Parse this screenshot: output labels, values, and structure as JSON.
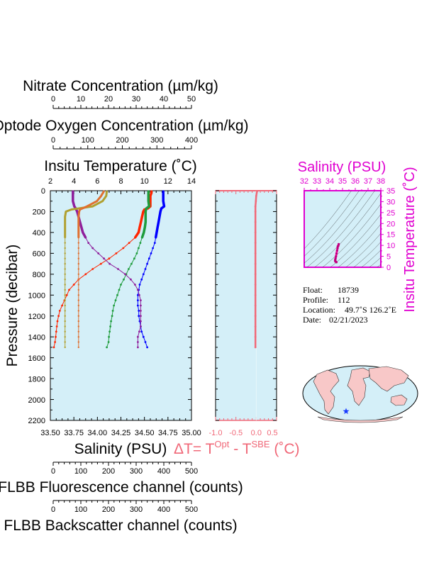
{
  "top_axes": [
    {
      "title": "Nitrate Concentration (µm/kg)",
      "ticks": [
        "0",
        "10",
        "20",
        "30",
        "40",
        "50"
      ]
    },
    {
      "title": "Optode Oxygen Concentration (µm/kg)",
      "ticks": [
        "0",
        "100",
        "200",
        "300",
        "400"
      ]
    },
    {
      "title": "Insitu Temperature (˚C)",
      "ticks": [
        "2",
        "4",
        "6",
        "8",
        "10",
        "12",
        "14"
      ]
    }
  ],
  "bottom_axes": [
    {
      "title": "Salinity (PSU)",
      "ticks": [
        "33.50",
        "33.75",
        "34.00",
        "34.25",
        "34.50",
        "34.75",
        "35.00"
      ]
    },
    {
      "title": "FLBB Fluorescence channel (counts)",
      "ticks": [
        "0",
        "100",
        "200",
        "300",
        "400",
        "500"
      ]
    },
    {
      "title": "FLBB Backscatter channel (counts)",
      "ticks": [
        "0",
        "100",
        "200",
        "300",
        "400",
        "500"
      ]
    }
  ],
  "main_y": {
    "title": "Pressure (decibar)",
    "ticks": [
      "0",
      "200",
      "400",
      "600",
      "800",
      "1000",
      "1200",
      "1400",
      "1600",
      "1800",
      "2000",
      "2200"
    ]
  },
  "dt_axis": {
    "title_main": "ΔT= T",
    "title_sup1": "Opt",
    "title_mid": " - T",
    "title_sup2": "SBE",
    "title_end": " (˚C)",
    "ticks": [
      "-1.0",
      "-0.5",
      "0.0",
      "0.5"
    ]
  },
  "ts_panel": {
    "title_top": "Salinity (PSU)",
    "title_right": "Insitu Temperature (˚C)",
    "x_ticks": [
      "32",
      "33",
      "34",
      "35",
      "36",
      "37",
      "38"
    ],
    "y_ticks": [
      "35",
      "30",
      "25",
      "20",
      "15",
      "10",
      "5",
      "0"
    ]
  },
  "info": {
    "float_label": "Float:",
    "float_value": "18739",
    "profile_label": "Profile:",
    "profile_value": "112",
    "location_label": "Location:",
    "location_value": "49.7˚S  126.2˚E",
    "date_label": "Date:",
    "date_value": "02/21/2023"
  },
  "colors": {
    "panel_bg": "#d4eff8",
    "temperature": "#ff2400",
    "salinity": "#0000ff",
    "oxygen": "#1e9c3c",
    "nitrate": "#8f1f9c",
    "fluorescence": "#b0a030",
    "backscatter": "#e07030",
    "delta_t": "#f06878",
    "ts_axis": "#e000d0",
    "map_land": "#f8c8c8",
    "map_ocean": "#d4eff8"
  },
  "chart_data": [
    {
      "type": "line",
      "title": "",
      "ylabel": "Pressure (decibar)",
      "ylim": [
        2200,
        0
      ],
      "series": [
        {
          "name": "Insitu Temperature (˚C)",
          "xlim": [
            2,
            14
          ],
          "points": [
            [
              10.6,
              5
            ],
            [
              10.6,
              20
            ],
            [
              10.5,
              50
            ],
            [
              10.5,
              100
            ],
            [
              10.5,
              150
            ],
            [
              10.3,
              170
            ],
            [
              10.0,
              180
            ],
            [
              9.9,
              200
            ],
            [
              9.8,
              250
            ],
            [
              9.7,
              300
            ],
            [
              9.6,
              350
            ],
            [
              9.5,
              400
            ],
            [
              9.2,
              450
            ],
            [
              8.7,
              500
            ],
            [
              8.2,
              550
            ],
            [
              7.6,
              600
            ],
            [
              7.0,
              650
            ],
            [
              6.3,
              700
            ],
            [
              5.6,
              750
            ],
            [
              5.0,
              800
            ],
            [
              4.4,
              850
            ],
            [
              4.0,
              900
            ],
            [
              3.6,
              950
            ],
            [
              3.4,
              1000
            ],
            [
              3.2,
              1050
            ],
            [
              3.0,
              1100
            ],
            [
              2.8,
              1150
            ],
            [
              2.7,
              1200
            ],
            [
              2.6,
              1250
            ],
            [
              2.55,
              1300
            ],
            [
              2.5,
              1350
            ],
            [
              2.45,
              1400
            ],
            [
              2.4,
              1450
            ],
            [
              2.3,
              1500
            ]
          ]
        },
        {
          "name": "Salinity (PSU)",
          "xlim": [
            33.5,
            35.0
          ],
          "points": [
            [
              34.7,
              5
            ],
            [
              34.7,
              50
            ],
            [
              34.7,
              100
            ],
            [
              34.71,
              150
            ],
            [
              34.68,
              170
            ],
            [
              34.67,
              200
            ],
            [
              34.66,
              250
            ],
            [
              34.65,
              300
            ],
            [
              34.64,
              350
            ],
            [
              34.63,
              400
            ],
            [
              34.62,
              450
            ],
            [
              34.61,
              500
            ],
            [
              34.59,
              550
            ],
            [
              34.57,
              600
            ],
            [
              34.55,
              650
            ],
            [
              34.53,
              700
            ],
            [
              34.51,
              750
            ],
            [
              34.49,
              800
            ],
            [
              34.47,
              850
            ],
            [
              34.45,
              900
            ],
            [
              34.44,
              950
            ],
            [
              34.43,
              1000
            ],
            [
              34.43,
              1050
            ],
            [
              34.43,
              1100
            ],
            [
              34.44,
              1150
            ],
            [
              34.44,
              1200
            ],
            [
              34.45,
              1250
            ],
            [
              34.46,
              1300
            ],
            [
              34.47,
              1350
            ],
            [
              34.49,
              1400
            ],
            [
              34.51,
              1450
            ],
            [
              34.53,
              1500
            ]
          ]
        },
        {
          "name": "Optode Oxygen Concentration (µm/kg)",
          "xlim": [
            0,
            400
          ],
          "points": [
            [
              278,
              5
            ],
            [
              278,
              50
            ],
            [
              278,
              100
            ],
            [
              280,
              150
            ],
            [
              272,
              170
            ],
            [
              270,
              200
            ],
            [
              270,
              250
            ],
            [
              270,
              300
            ],
            [
              268,
              350
            ],
            [
              265,
              400
            ],
            [
              260,
              450
            ],
            [
              255,
              500
            ],
            [
              250,
              550
            ],
            [
              245,
              600
            ],
            [
              238,
              650
            ],
            [
              230,
              700
            ],
            [
              222,
              750
            ],
            [
              215,
              800
            ],
            [
              208,
              850
            ],
            [
              200,
              900
            ],
            [
              195,
              950
            ],
            [
              190,
              1000
            ],
            [
              185,
              1050
            ],
            [
              180,
              1100
            ],
            [
              177,
              1150
            ],
            [
              175,
              1200
            ],
            [
              172,
              1250
            ],
            [
              170,
              1300
            ],
            [
              168,
              1350
            ],
            [
              166,
              1400
            ],
            [
              165,
              1450
            ],
            [
              160,
              1500
            ]
          ]
        },
        {
          "name": "Nitrate Concentration (µm/kg)",
          "xlim": [
            0,
            50
          ],
          "points": [
            [
              8,
              5
            ],
            [
              8,
              50
            ],
            [
              8,
              100
            ],
            [
              8.5,
              150
            ],
            [
              9,
              170
            ],
            [
              9.5,
              200
            ],
            [
              10,
              250
            ],
            [
              10.5,
              300
            ],
            [
              11,
              350
            ],
            [
              11.5,
              400
            ],
            [
              12.5,
              450
            ],
            [
              13.5,
              500
            ],
            [
              15,
              550
            ],
            [
              17,
              600
            ],
            [
              19,
              650
            ],
            [
              21,
              700
            ],
            [
              24,
              750
            ],
            [
              26.5,
              800
            ],
            [
              28.5,
              850
            ],
            [
              30,
              900
            ],
            [
              31,
              950
            ],
            [
              31.5,
              1000
            ],
            [
              32,
              1050
            ],
            [
              32,
              1100
            ],
            [
              32,
              1150
            ],
            [
              32,
              1200
            ],
            [
              32,
              1250
            ],
            [
              32,
              1300
            ],
            [
              31.5,
              1350
            ],
            [
              31,
              1400
            ],
            [
              31,
              1450
            ],
            [
              31,
              1500
            ]
          ]
        },
        {
          "name": "FLBB Fluorescence channel (counts)",
          "xlim": [
            0,
            500
          ],
          "points": [
            [
              200,
              5
            ],
            [
              198,
              50
            ],
            [
              185,
              100
            ],
            [
              150,
              150
            ],
            [
              75,
              180
            ],
            [
              55,
              200
            ],
            [
              52,
              250
            ],
            [
              52,
              300
            ],
            [
              52,
              350
            ],
            [
              52,
              400
            ],
            [
              52,
              450
            ],
            [
              52,
              500
            ],
            [
              52,
              550
            ],
            [
              52,
              600
            ],
            [
              52,
              650
            ],
            [
              52,
              700
            ],
            [
              52,
              750
            ],
            [
              52,
              800
            ],
            [
              52,
              850
            ],
            [
              52,
              900
            ],
            [
              52,
              950
            ],
            [
              52,
              1000
            ],
            [
              52,
              1050
            ],
            [
              52,
              1100
            ],
            [
              52,
              1150
            ],
            [
              52,
              1200
            ],
            [
              52,
              1250
            ],
            [
              52,
              1300
            ],
            [
              52,
              1350
            ],
            [
              52,
              1400
            ],
            [
              52,
              1450
            ],
            [
              52,
              1500
            ]
          ]
        },
        {
          "name": "FLBB Backscatter channel (counts)",
          "xlim": [
            0,
            500
          ],
          "points": [
            [
              190,
              5
            ],
            [
              180,
              50
            ],
            [
              165,
              100
            ],
            [
              130,
              150
            ],
            [
              105,
              180
            ],
            [
              102,
              200
            ],
            [
              100,
              250
            ],
            [
              100,
              300
            ],
            [
              100,
              350
            ],
            [
              100,
              400
            ],
            [
              100,
              450
            ],
            [
              100,
              500
            ],
            [
              100,
              550
            ],
            [
              100,
              600
            ],
            [
              100,
              650
            ],
            [
              100,
              700
            ],
            [
              100,
              750
            ],
            [
              100,
              800
            ],
            [
              100,
              850
            ],
            [
              100,
              900
            ],
            [
              100,
              950
            ],
            [
              100,
              1000
            ],
            [
              100,
              1050
            ],
            [
              100,
              1100
            ],
            [
              100,
              1150
            ],
            [
              100,
              1200
            ],
            [
              100,
              1250
            ],
            [
              100,
              1300
            ],
            [
              100,
              1350
            ],
            [
              100,
              1400
            ],
            [
              100,
              1450
            ],
            [
              100,
              1500
            ]
          ]
        }
      ]
    },
    {
      "type": "line",
      "title": "",
      "xlabel": "ΔT= TOpt - TSBE (˚C)",
      "xlim": [
        -1.0,
        0.5
      ],
      "ylim": [
        2200,
        0
      ],
      "series": [
        {
          "name": "ΔT",
          "points": [
            [
              0.02,
              5
            ],
            [
              0.0,
              50
            ],
            [
              -0.01,
              100
            ],
            [
              -0.02,
              150
            ],
            [
              -0.02,
              200
            ],
            [
              -0.02,
              300
            ],
            [
              -0.02,
              400
            ],
            [
              -0.02,
              500
            ],
            [
              -0.02,
              600
            ],
            [
              -0.02,
              700
            ],
            [
              -0.02,
              800
            ],
            [
              -0.02,
              900
            ],
            [
              -0.02,
              1000
            ],
            [
              -0.02,
              1100
            ],
            [
              -0.02,
              1200
            ],
            [
              -0.02,
              1300
            ],
            [
              -0.02,
              1400
            ],
            [
              -0.02,
              1500
            ]
          ]
        }
      ]
    },
    {
      "type": "scatter",
      "title": "",
      "xlabel": "Salinity (PSU)",
      "ylabel": "Insitu Temperature (˚C)",
      "xlim": [
        32,
        38
      ],
      "ylim": [
        0,
        35
      ],
      "series": [
        {
          "name": "T-S",
          "points": [
            [
              34.53,
              2.3
            ],
            [
              34.49,
              2.45
            ],
            [
              34.46,
              2.55
            ],
            [
              34.44,
              2.7
            ],
            [
              34.43,
              3.0
            ],
            [
              34.43,
              3.4
            ],
            [
              34.45,
              4.0
            ],
            [
              34.49,
              5.0
            ],
            [
              34.53,
              6.3
            ],
            [
              34.57,
              7.6
            ],
            [
              34.61,
              8.7
            ],
            [
              34.63,
              9.5
            ],
            [
              34.65,
              9.7
            ],
            [
              34.67,
              9.9
            ],
            [
              34.7,
              10.5
            ],
            [
              34.7,
              10.6
            ]
          ]
        }
      ]
    }
  ]
}
